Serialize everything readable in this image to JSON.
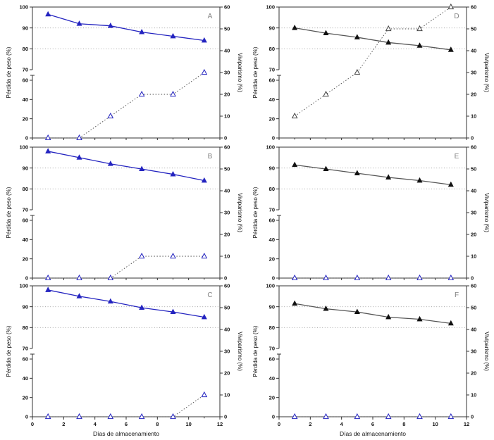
{
  "figure": {
    "x_label": "Días de almacenamiento",
    "left_y_label": "Pérdida de peso (%)",
    "right_y_label": "Viviparismo (%)",
    "x_range": [
      0,
      12
    ],
    "x_major_ticks": [
      0,
      2,
      4,
      6,
      8,
      10,
      12
    ],
    "x_minor_ticks": [
      1,
      3,
      5,
      7,
      9,
      11
    ],
    "left_axis": {
      "broken": true,
      "upper_segment_range": [
        70,
        100
      ],
      "upper_ticks": [
        100,
        90,
        80,
        70
      ],
      "lower_segment_range": [
        0,
        60
      ],
      "lower_ticks": [
        60,
        40,
        20,
        0
      ],
      "break_between": [
        60,
        70
      ]
    },
    "right_axis": {
      "range": [
        0,
        60
      ],
      "ticks": [
        0,
        10,
        20,
        30,
        40,
        50,
        60
      ]
    },
    "gridlines_left_axis_values": [
      90,
      80
    ],
    "grid_style": "dotted",
    "legend": "none",
    "colors": {
      "blue_series": "#2424c0",
      "black_marker": "#111111",
      "dark_line": "#555555",
      "dotted_series_line": "#444444",
      "gridline": "#9a9a9a",
      "axis": "#333333",
      "tick_label": "#111111",
      "panel_letter": "#808080",
      "background": "#ffffff"
    },
    "grid_order_row_major": [
      "A",
      "D",
      "B",
      "E",
      "C",
      "F"
    ],
    "bottom_row_panels": [
      "C",
      "F"
    ]
  },
  "chart_data": [
    {
      "panel": "A",
      "type": "line",
      "x": [
        1,
        3,
        5,
        7,
        9,
        11
      ],
      "series": [
        {
          "name": "Pérdida de peso (%)",
          "axis": "left",
          "marker": "triangle-filled",
          "marker_color": "#2424c0",
          "line_style": "solid",
          "line_color": "#2424c0",
          "values": [
            96.5,
            92,
            91,
            88,
            86,
            84
          ]
        },
        {
          "name": "Viviparismo (%)",
          "axis": "right",
          "marker": "triangle-open",
          "marker_color": "#2424c0",
          "line_style": "dotted",
          "line_color": "#444444",
          "values": [
            0,
            0,
            10,
            20,
            20,
            30
          ]
        }
      ]
    },
    {
      "panel": "B",
      "type": "line",
      "x": [
        1,
        3,
        5,
        7,
        9,
        11
      ],
      "series": [
        {
          "name": "Pérdida de peso (%)",
          "axis": "left",
          "marker": "triangle-filled",
          "marker_color": "#2424c0",
          "line_style": "solid",
          "line_color": "#2424c0",
          "values": [
            98,
            95,
            92,
            89.5,
            87,
            84
          ]
        },
        {
          "name": "Viviparismo (%)",
          "axis": "right",
          "marker": "triangle-open",
          "marker_color": "#2424c0",
          "line_style": "dotted",
          "line_color": "#444444",
          "values": [
            0,
            0,
            0,
            10,
            10,
            10
          ]
        }
      ]
    },
    {
      "panel": "C",
      "type": "line",
      "x": [
        1,
        3,
        5,
        7,
        9,
        11
      ],
      "series": [
        {
          "name": "Pérdida de peso (%)",
          "axis": "left",
          "marker": "triangle-filled",
          "marker_color": "#2424c0",
          "line_style": "solid",
          "line_color": "#2424c0",
          "values": [
            98,
            95,
            92.5,
            89.5,
            87.5,
            85
          ]
        },
        {
          "name": "Viviparismo (%)",
          "axis": "right",
          "marker": "triangle-open",
          "marker_color": "#2424c0",
          "line_style": "dotted",
          "line_color": "#444444",
          "values": [
            0,
            0,
            0,
            0,
            0,
            10
          ]
        }
      ]
    },
    {
      "panel": "D",
      "type": "line",
      "x": [
        1,
        3,
        5,
        7,
        9,
        11
      ],
      "series": [
        {
          "name": "Pérdida de peso (%)",
          "axis": "left",
          "marker": "triangle-filled",
          "marker_color": "#111111",
          "line_style": "solid",
          "line_color": "#555555",
          "values": [
            90,
            87.5,
            85.5,
            83,
            81.5,
            79.5
          ]
        },
        {
          "name": "Viviparismo (%)",
          "axis": "right",
          "marker": "triangle-open",
          "marker_color": "#444444",
          "line_style": "dotted",
          "line_color": "#444444",
          "values": [
            10,
            20,
            30,
            50,
            50,
            60
          ]
        }
      ]
    },
    {
      "panel": "E",
      "type": "line",
      "x": [
        1,
        3,
        5,
        7,
        9,
        11
      ],
      "series": [
        {
          "name": "Pérdida de peso (%)",
          "axis": "left",
          "marker": "triangle-filled",
          "marker_color": "#111111",
          "line_style": "solid",
          "line_color": "#555555",
          "values": [
            91.5,
            89.5,
            87.5,
            85.5,
            84,
            82
          ]
        },
        {
          "name": "Viviparismo (%)",
          "axis": "right",
          "marker": "triangle-open",
          "marker_color": "#2424c0",
          "line_style": "dotted",
          "line_color": "#444444",
          "values": [
            0,
            0,
            0,
            0,
            0,
            0
          ]
        }
      ]
    },
    {
      "panel": "F",
      "type": "line",
      "x": [
        1,
        3,
        5,
        7,
        9,
        11
      ],
      "series": [
        {
          "name": "Pérdida de peso (%)",
          "axis": "left",
          "marker": "triangle-filled",
          "marker_color": "#111111",
          "line_style": "solid",
          "line_color": "#555555",
          "values": [
            91.5,
            89,
            87.5,
            85,
            84,
            82
          ]
        },
        {
          "name": "Viviparismo (%)",
          "axis": "right",
          "marker": "triangle-open",
          "marker_color": "#2424c0",
          "line_style": "dotted",
          "line_color": "#444444",
          "values": [
            0,
            0,
            0,
            0,
            0,
            0
          ]
        }
      ]
    }
  ]
}
